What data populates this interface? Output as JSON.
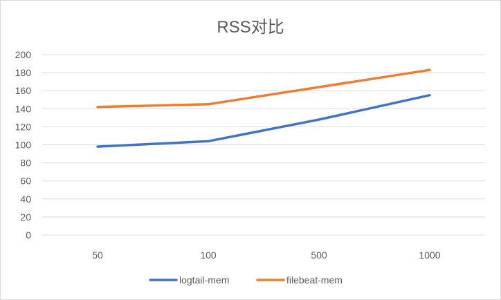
{
  "chart_data": {
    "type": "line",
    "title": "RSS对比",
    "categories": [
      "50",
      "100",
      "500",
      "1000"
    ],
    "series": [
      {
        "name": "logtail-mem",
        "values": [
          98,
          104,
          128,
          155
        ],
        "color": "#4472C4"
      },
      {
        "name": "filebeat-mem",
        "values": [
          142,
          145,
          164,
          183
        ],
        "color": "#ED7D31"
      }
    ],
    "ylim": [
      0,
      200
    ],
    "yticks": [
      0,
      20,
      40,
      60,
      80,
      100,
      120,
      140,
      160,
      180,
      200
    ],
    "grid": true,
    "legend": "bottom"
  }
}
